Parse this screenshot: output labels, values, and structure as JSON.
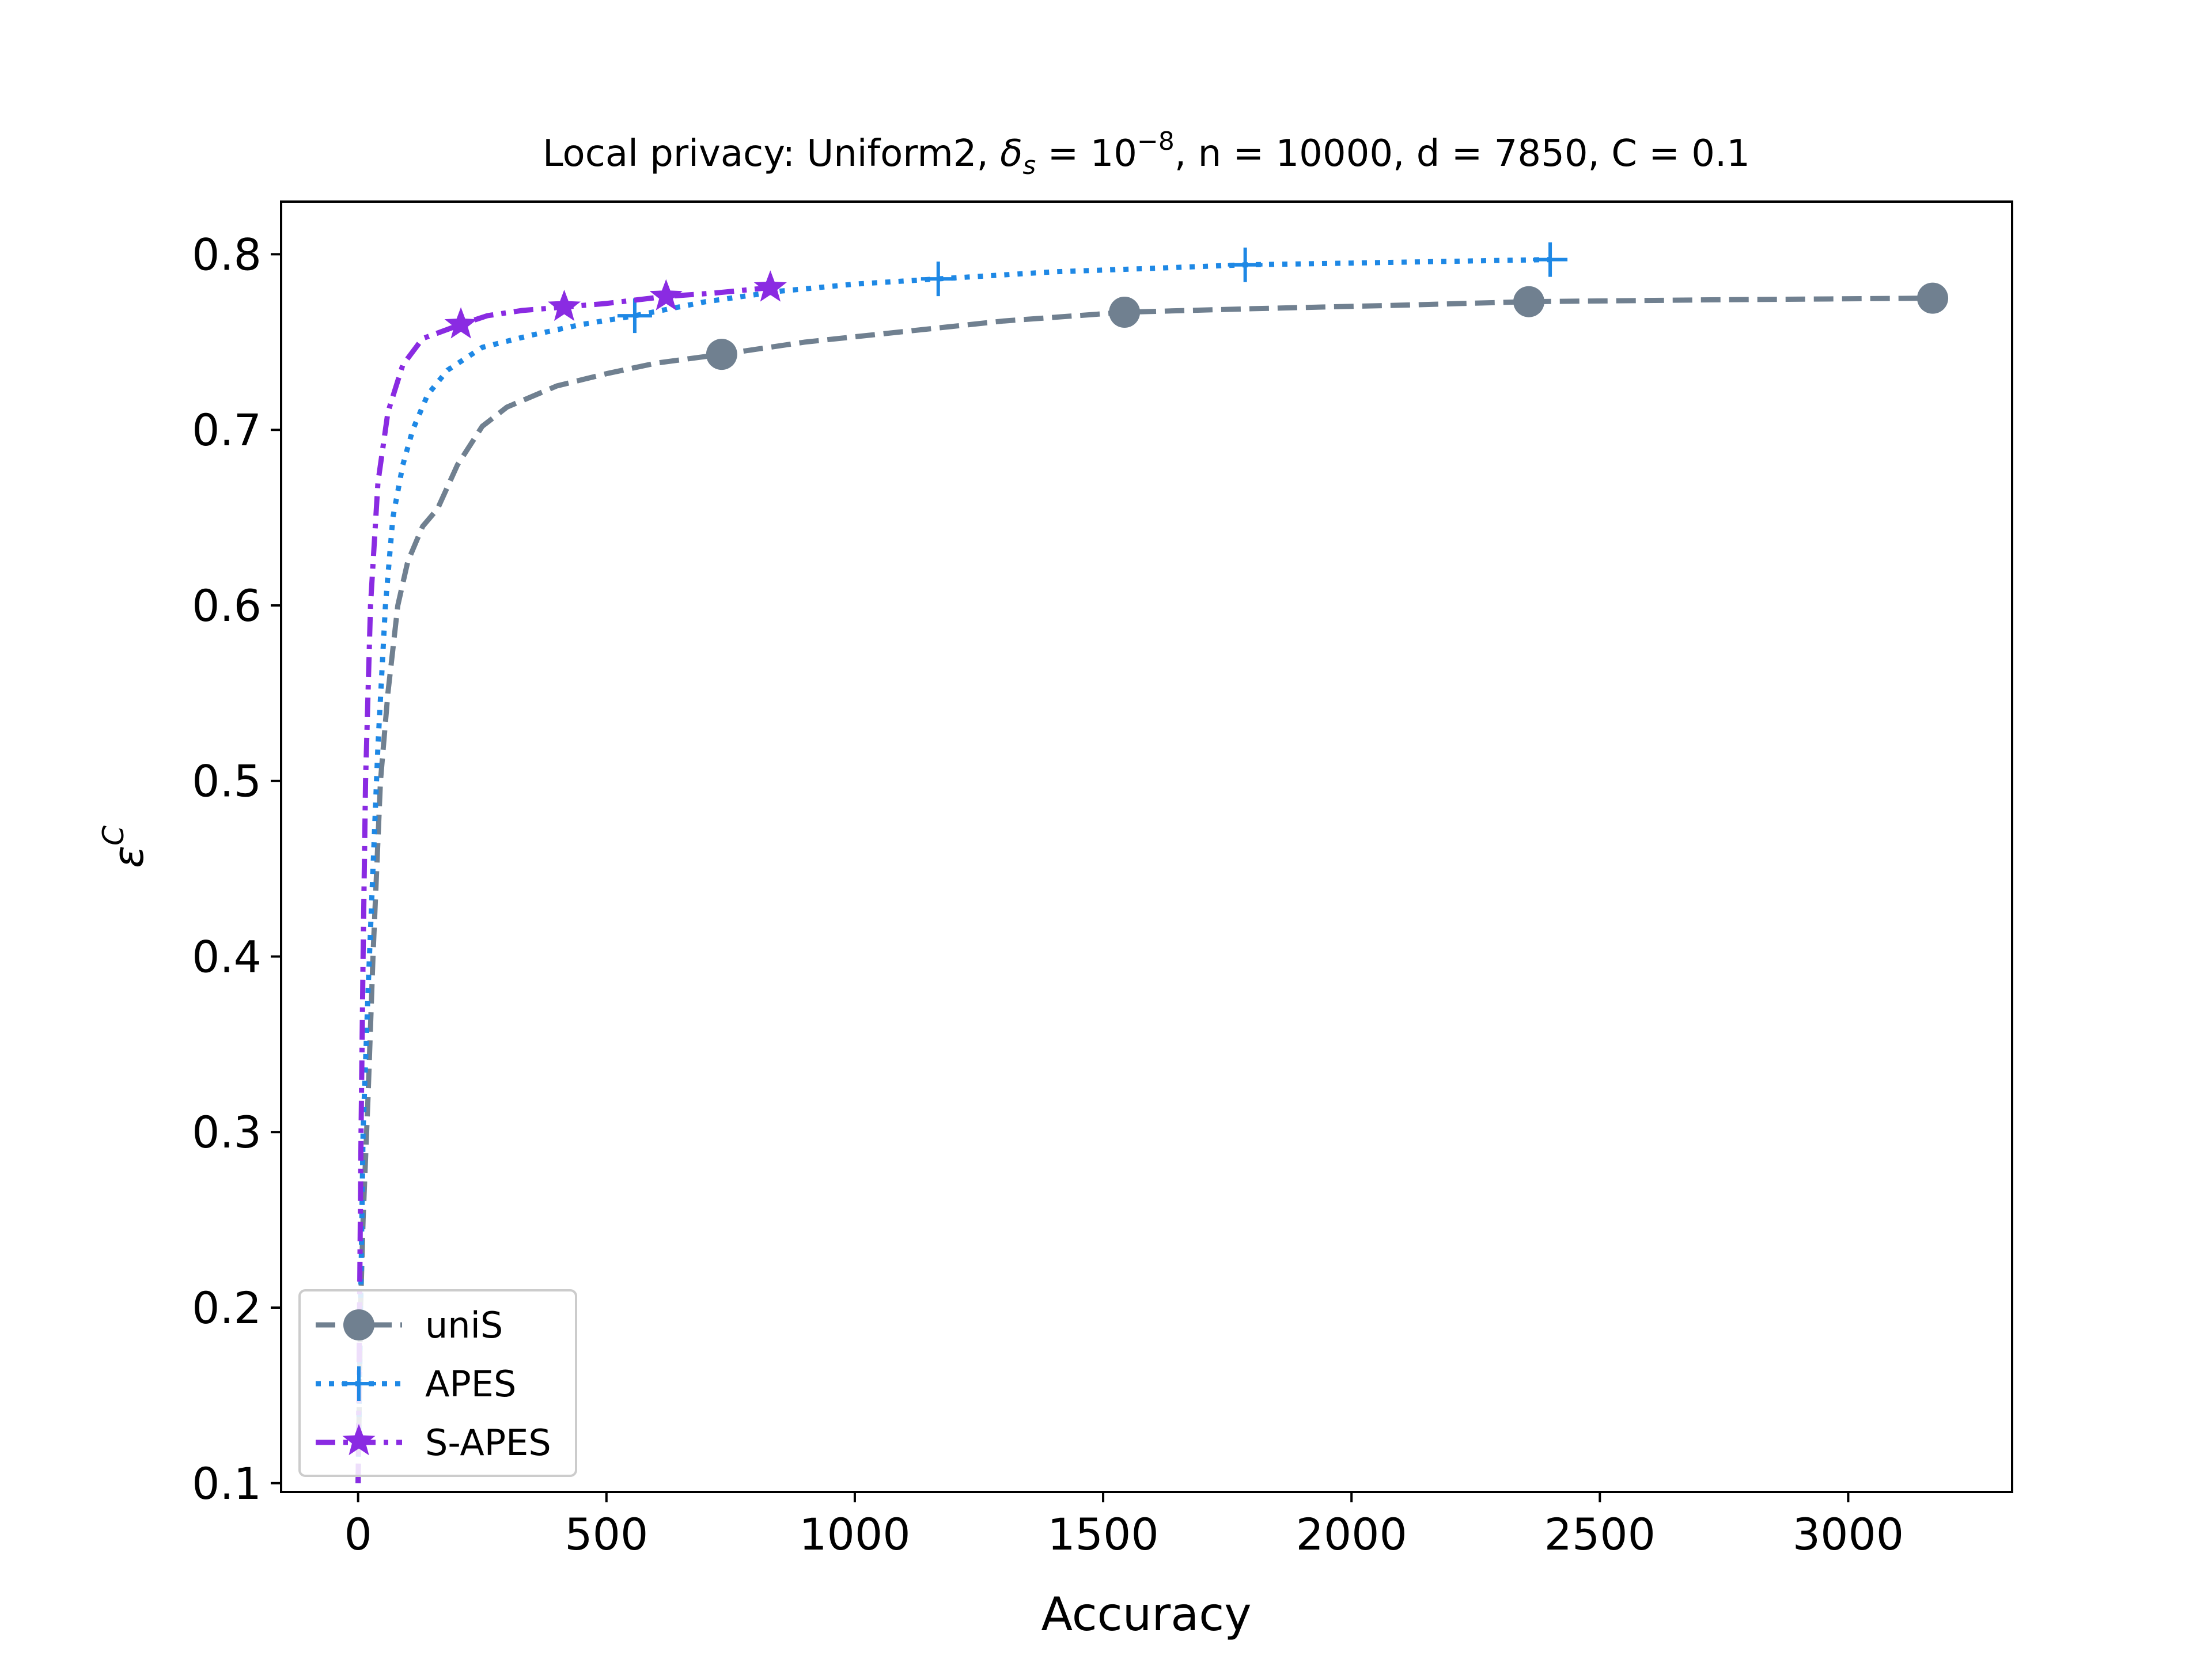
{
  "chart_data": {
    "type": "line",
    "title": {
      "prefix": "Local privacy: Uniform2, ",
      "delta": "δ",
      "delta_sub": "s",
      "delta_eq": " = 10",
      "delta_exp": "−8",
      "n_part": ", n = 10000",
      "d_part": ", d = 7850",
      "c_part": ", C = 0.1"
    },
    "xlabel": "Accuracy",
    "ylabel": {
      "base": "ε",
      "sup": "C"
    },
    "xlim": [
      -155,
      3330
    ],
    "ylim": [
      0.095,
      0.83
    ],
    "xticks": [
      0,
      500,
      1000,
      1500,
      2000,
      2500,
      3000
    ],
    "yticks": [
      0.1,
      0.2,
      0.3,
      0.4,
      0.5,
      0.6,
      0.7,
      0.8
    ],
    "xtick_labels": [
      "0",
      "500",
      "1000",
      "1500",
      "2000",
      "2500",
      "3000"
    ],
    "ytick_labels": [
      "0.1",
      "0.2",
      "0.3",
      "0.4",
      "0.5",
      "0.6",
      "0.7",
      "0.8"
    ],
    "grid": false,
    "legend_position": "lower-left",
    "series": [
      {
        "name": "uniS",
        "color": "#708090",
        "dash": "dashed",
        "marker": "circle",
        "points": [
          [
            0,
            0.1
          ],
          [
            5,
            0.2
          ],
          [
            10,
            0.25
          ],
          [
            20,
            0.32
          ],
          [
            30,
            0.4
          ],
          [
            45,
            0.5
          ],
          [
            60,
            0.55
          ],
          [
            80,
            0.6
          ],
          [
            100,
            0.625
          ],
          [
            130,
            0.645
          ],
          [
            160,
            0.655
          ],
          [
            200,
            0.68
          ],
          [
            250,
            0.702
          ],
          [
            300,
            0.713
          ],
          [
            400,
            0.725
          ],
          [
            500,
            0.732
          ],
          [
            600,
            0.738
          ],
          [
            732,
            0.743
          ],
          [
            900,
            0.75
          ],
          [
            1100,
            0.756
          ],
          [
            1300,
            0.762
          ],
          [
            1543,
            0.767
          ],
          [
            1800,
            0.769
          ],
          [
            2100,
            0.771
          ],
          [
            2357,
            0.773
          ],
          [
            2700,
            0.774
          ],
          [
            3170,
            0.775
          ]
        ],
        "markers": [
          [
            732,
            0.743
          ],
          [
            1543,
            0.767
          ],
          [
            2357,
            0.773
          ],
          [
            3170,
            0.775
          ]
        ]
      },
      {
        "name": "APES",
        "color": "#1e88e5",
        "dash": "dotted",
        "marker": "plus",
        "points": [
          [
            0,
            0.1
          ],
          [
            5,
            0.2
          ],
          [
            10,
            0.3
          ],
          [
            20,
            0.38
          ],
          [
            30,
            0.45
          ],
          [
            40,
            0.52
          ],
          [
            55,
            0.6
          ],
          [
            70,
            0.65
          ],
          [
            90,
            0.68
          ],
          [
            110,
            0.7
          ],
          [
            140,
            0.72
          ],
          [
            180,
            0.734
          ],
          [
            250,
            0.747
          ],
          [
            350,
            0.754
          ],
          [
            450,
            0.76
          ],
          [
            557,
            0.765
          ],
          [
            700,
            0.773
          ],
          [
            850,
            0.779
          ],
          [
            1000,
            0.783
          ],
          [
            1168,
            0.786
          ],
          [
            1400,
            0.79
          ],
          [
            1600,
            0.792
          ],
          [
            1786,
            0.794
          ],
          [
            2000,
            0.795
          ],
          [
            2200,
            0.796
          ],
          [
            2400,
            0.797
          ]
        ],
        "markers": [
          [
            557,
            0.765
          ],
          [
            1168,
            0.786
          ],
          [
            1786,
            0.794
          ],
          [
            2400,
            0.797
          ]
        ]
      },
      {
        "name": "S-APES",
        "color": "#8a2be2",
        "dash": "dashdot",
        "marker": "star",
        "points": [
          [
            0,
            0.1
          ],
          [
            3,
            0.2
          ],
          [
            6,
            0.3
          ],
          [
            10,
            0.4
          ],
          [
            15,
            0.5
          ],
          [
            25,
            0.6
          ],
          [
            40,
            0.67
          ],
          [
            60,
            0.71
          ],
          [
            90,
            0.737
          ],
          [
            130,
            0.752
          ],
          [
            207,
            0.76
          ],
          [
            260,
            0.765
          ],
          [
            330,
            0.768
          ],
          [
            415,
            0.77
          ],
          [
            500,
            0.772
          ],
          [
            620,
            0.776
          ],
          [
            720,
            0.778
          ],
          [
            830,
            0.781
          ]
        ],
        "markers": [
          [
            207,
            0.76
          ],
          [
            415,
            0.77
          ],
          [
            620,
            0.776
          ],
          [
            830,
            0.781
          ]
        ]
      }
    ]
  }
}
